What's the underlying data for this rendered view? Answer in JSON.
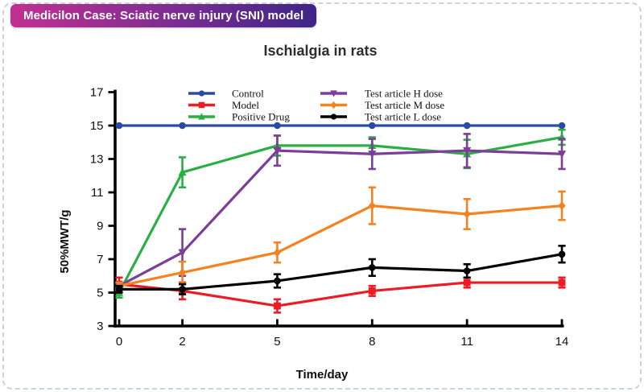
{
  "header": {
    "badge": "Medicilon Case: Sciatic nerve injury (SNI) model",
    "badge_gradient": [
      "#C13091",
      "#3E2588"
    ]
  },
  "chart_data": {
    "type": "line",
    "title": "Ischialgia in rats",
    "xlabel": "Time/day",
    "ylabel": "50%MWT/g",
    "x": [
      0,
      2,
      5,
      8,
      11,
      14
    ],
    "xticks": [
      0,
      2,
      5,
      8,
      11,
      14
    ],
    "yticks": [
      3,
      5,
      7,
      9,
      11,
      13,
      15,
      17
    ],
    "xlim": [
      0,
      14
    ],
    "ylim": [
      3,
      17
    ],
    "grid": false,
    "error_bars": true,
    "legend": {
      "position": "top-center",
      "columns": 2
    },
    "series": [
      {
        "name": "Control",
        "color": "#2B4B9E",
        "marker": "circle",
        "values": [
          15,
          15,
          15,
          15,
          15,
          15
        ],
        "errors": [
          0,
          0,
          0,
          0,
          0,
          0
        ]
      },
      {
        "name": "Model",
        "color": "#EB1C24",
        "marker": "square",
        "values": [
          5.5,
          5.1,
          4.2,
          5.1,
          5.6,
          5.6
        ],
        "errors": [
          0.4,
          0.5,
          0.4,
          0.3,
          0.3,
          0.3
        ]
      },
      {
        "name": "Positive Drug",
        "color": "#2BAF44",
        "marker": "triangle-up",
        "values": [
          5.0,
          12.2,
          13.8,
          13.8,
          13.3,
          14.3
        ],
        "errors": [
          0.3,
          0.9,
          0.6,
          0.5,
          0.85,
          0.45
        ]
      },
      {
        "name": "Test article H dose",
        "color": "#7C3E98",
        "marker": "triangle-down",
        "values": [
          5.4,
          7.4,
          13.5,
          13.3,
          13.5,
          13.3
        ],
        "errors": [
          0.2,
          1.4,
          0.9,
          0.9,
          1.0,
          0.9
        ]
      },
      {
        "name": "Test article M dose",
        "color": "#F58220",
        "marker": "diamond",
        "values": [
          5.4,
          6.2,
          7.4,
          10.2,
          9.7,
          10.2
        ],
        "errors": [
          0.2,
          0.65,
          0.6,
          1.1,
          0.9,
          0.85
        ]
      },
      {
        "name": "Test article L dose",
        "color": "#000000",
        "marker": "circle",
        "values": [
          5.2,
          5.2,
          5.7,
          6.5,
          6.3,
          7.3
        ],
        "errors": [
          0.2,
          0.3,
          0.4,
          0.5,
          0.4,
          0.5
        ]
      }
    ]
  }
}
